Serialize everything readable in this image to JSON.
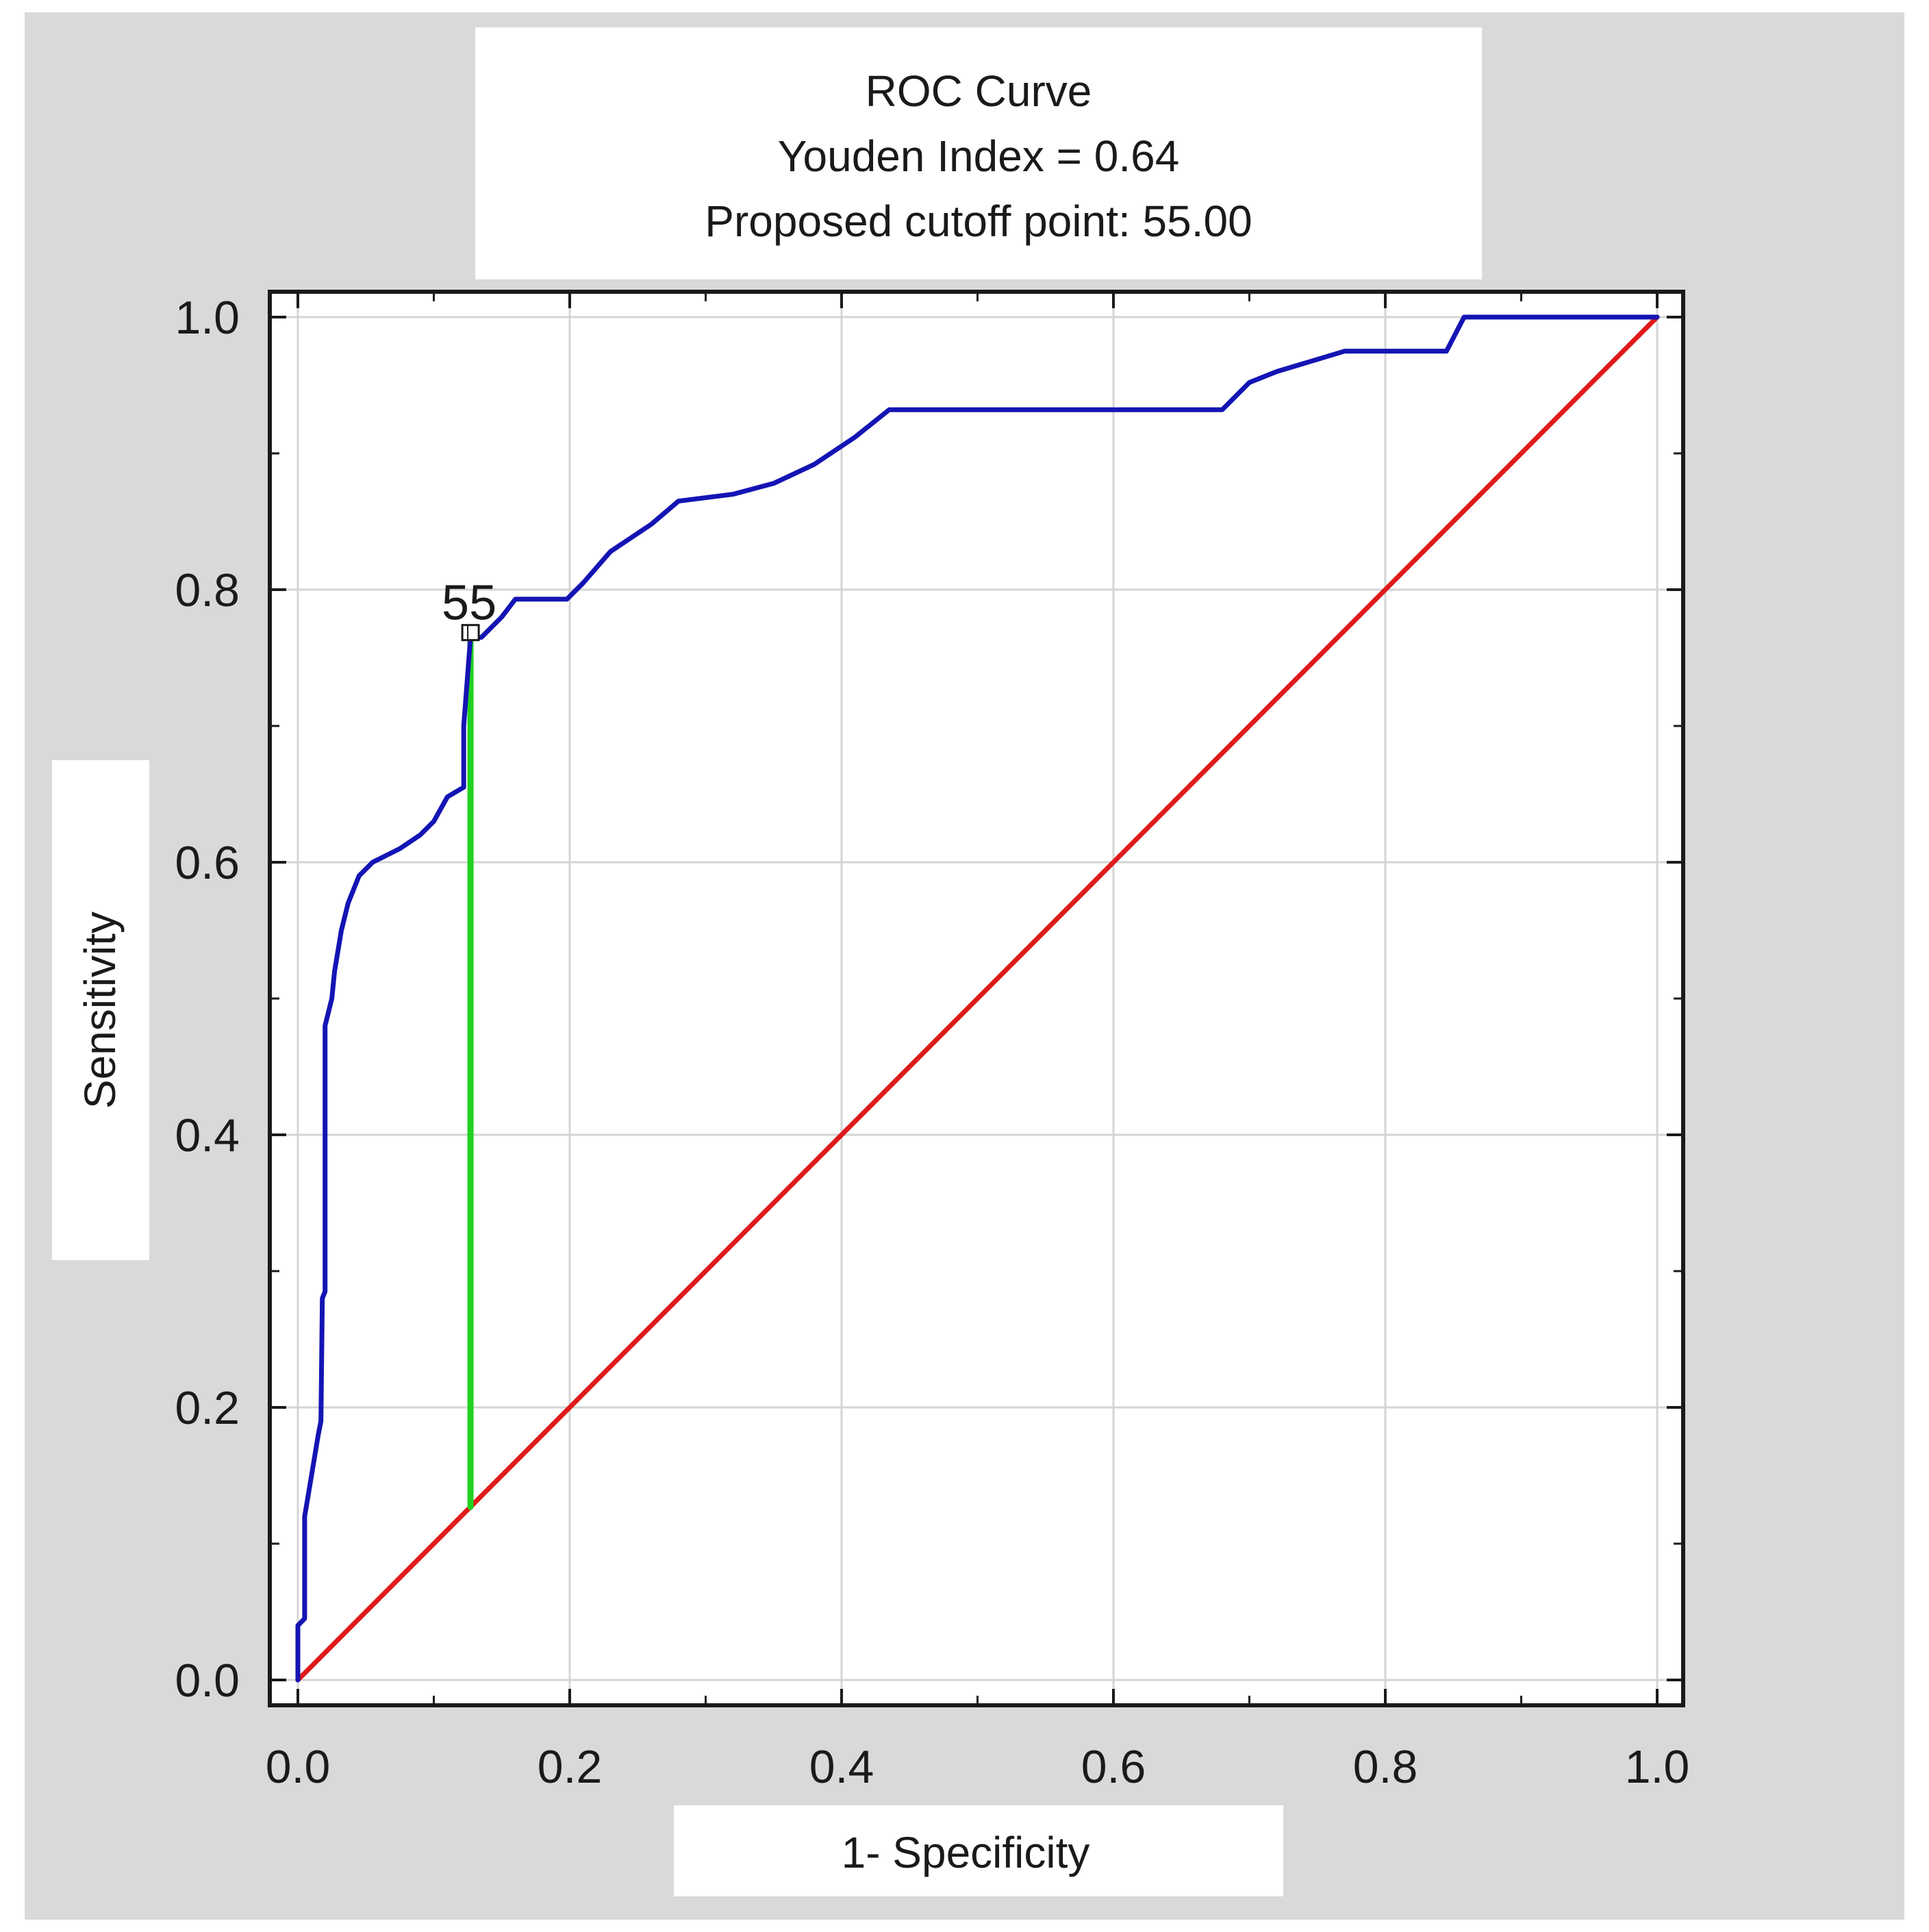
{
  "chart_data": {
    "type": "line",
    "title_lines": [
      "ROC Curve",
      "Youden Index = 0.64",
      "Proposed cutoff point: 55.00"
    ],
    "xlabel": "1- Specificity",
    "ylabel": "Sensitivity",
    "xlim": [
      0.0,
      1.0
    ],
    "ylim": [
      0.0,
      1.0
    ],
    "x_ticks": [
      "0.0",
      "0.2",
      "0.4",
      "0.6",
      "0.8",
      "1.0"
    ],
    "y_ticks": [
      "0.0",
      "0.2",
      "0.4",
      "0.6",
      "0.8",
      "1.0"
    ],
    "grid": true,
    "colors": {
      "background": "#d9d9d9",
      "plot_background": "#ffffff",
      "grid": "#d4d4d4",
      "roc_curve": "#1414b4",
      "reference_line": "#e01a1a",
      "youden_line": "#1fd21f"
    },
    "series": [
      {
        "role": "roc_curve",
        "points": [
          [
            0.0,
            0.0
          ],
          [
            0.0,
            0.04
          ],
          [
            0.005,
            0.045
          ],
          [
            0.005,
            0.12
          ],
          [
            0.01,
            0.15
          ],
          [
            0.015,
            0.18
          ],
          [
            0.017,
            0.19
          ],
          [
            0.018,
            0.28
          ],
          [
            0.02,
            0.285
          ],
          [
            0.02,
            0.48
          ],
          [
            0.025,
            0.5
          ],
          [
            0.027,
            0.52
          ],
          [
            0.032,
            0.55
          ],
          [
            0.037,
            0.57
          ],
          [
            0.045,
            0.59
          ],
          [
            0.055,
            0.6
          ],
          [
            0.075,
            0.61
          ],
          [
            0.09,
            0.62
          ],
          [
            0.1,
            0.63
          ],
          [
            0.11,
            0.648
          ],
          [
            0.122,
            0.655
          ],
          [
            0.122,
            0.7
          ],
          [
            0.127,
            0.765
          ],
          [
            0.135,
            0.765
          ],
          [
            0.15,
            0.78
          ],
          [
            0.16,
            0.793
          ],
          [
            0.198,
            0.793
          ],
          [
            0.21,
            0.805
          ],
          [
            0.23,
            0.828
          ],
          [
            0.26,
            0.848
          ],
          [
            0.28,
            0.865
          ],
          [
            0.32,
            0.87
          ],
          [
            0.35,
            0.878
          ],
          [
            0.38,
            0.892
          ],
          [
            0.41,
            0.912
          ],
          [
            0.435,
            0.932
          ],
          [
            0.68,
            0.932
          ],
          [
            0.7,
            0.952
          ],
          [
            0.72,
            0.96
          ],
          [
            0.77,
            0.975
          ],
          [
            0.845,
            0.975
          ],
          [
            0.858,
            1.0
          ],
          [
            1.0,
            1.0
          ]
        ]
      },
      {
        "role": "reference_line",
        "points": [
          [
            0.0,
            0.0
          ],
          [
            1.0,
            1.0
          ]
        ]
      },
      {
        "role": "youden_line",
        "points": [
          [
            0.127,
            0.127
          ],
          [
            0.127,
            0.765
          ]
        ]
      }
    ],
    "annotations": [
      {
        "text": "55",
        "x": 0.127,
        "y": 0.765
      }
    ]
  }
}
